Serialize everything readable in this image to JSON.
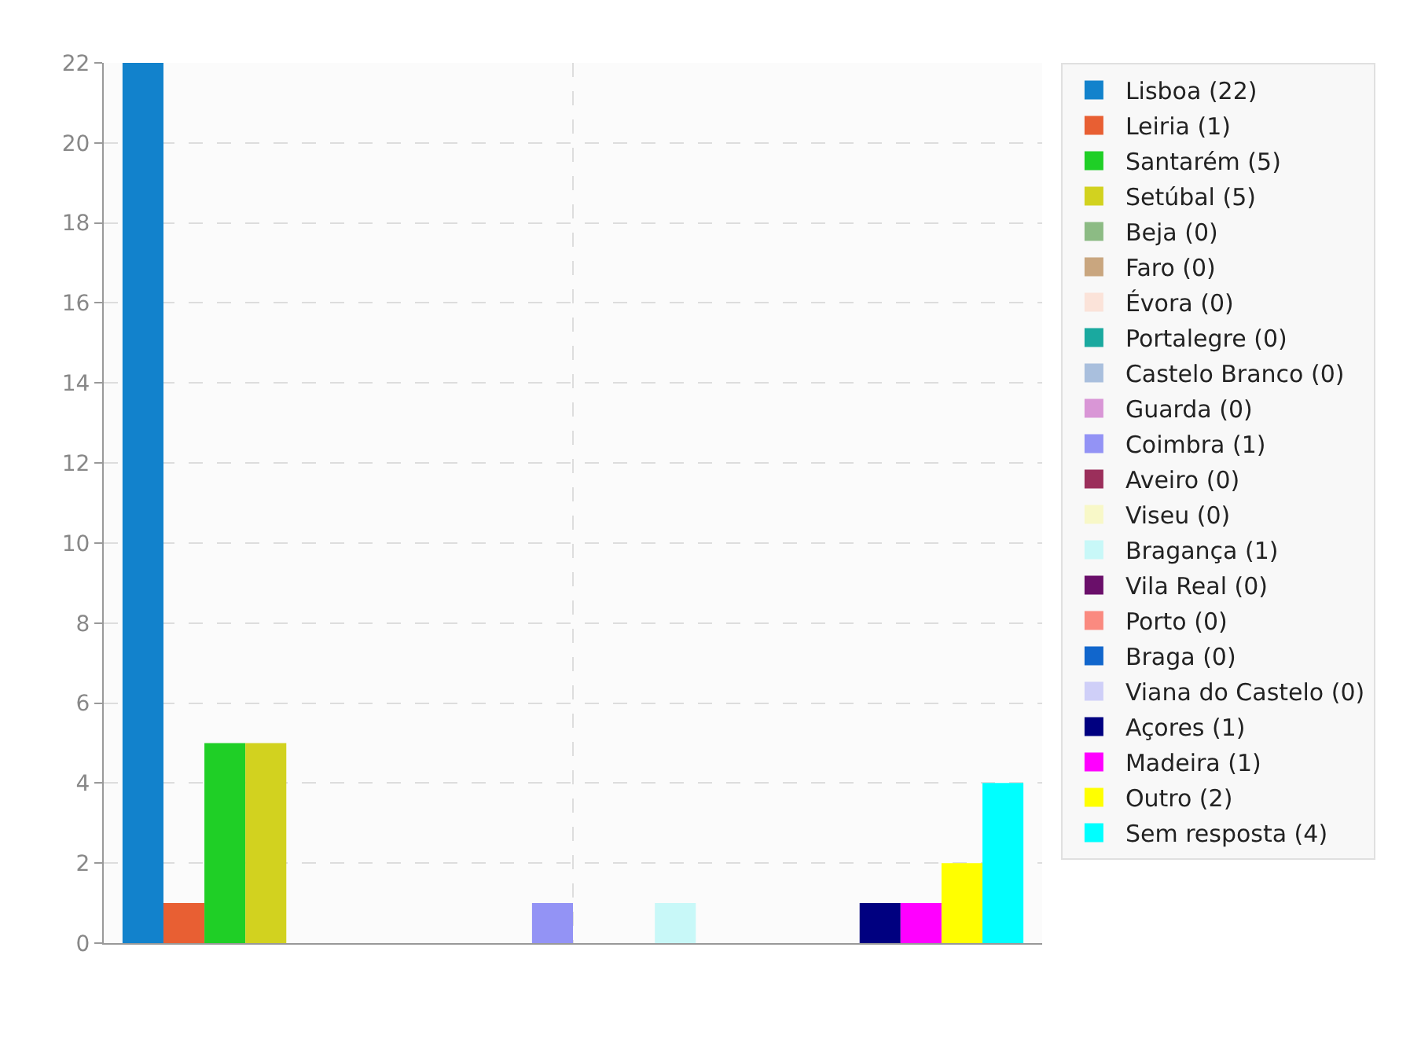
{
  "chart_data": {
    "type": "bar",
    "categories": [
      null
    ],
    "ylim": [
      0,
      22
    ],
    "yticks": [
      0,
      2,
      4,
      6,
      8,
      10,
      12,
      14,
      16,
      18,
      20,
      22
    ],
    "grid": true,
    "legend": "top right",
    "series": [
      {
        "name": "Lisboa (22)",
        "color": "#1282cc",
        "values": [
          22
        ]
      },
      {
        "name": "Leiria (1)",
        "color": "#e85f33",
        "values": [
          1
        ]
      },
      {
        "name": "Santarém (5)",
        "color": "#1fcf26",
        "values": [
          5
        ]
      },
      {
        "name": "Setúbal (5)",
        "color": "#d2d21f",
        "values": [
          5
        ]
      },
      {
        "name": "Beja (0)",
        "color": "#8cbb84",
        "values": [
          0
        ]
      },
      {
        "name": "Faro (0)",
        "color": "#c9a67f",
        "values": [
          0
        ]
      },
      {
        "name": "Évora (0)",
        "color": "#fbe3d9",
        "values": [
          0
        ]
      },
      {
        "name": "Portalegre (0)",
        "color": "#1aa99f",
        "values": [
          0
        ]
      },
      {
        "name": "Castelo Branco (0)",
        "color": "#a9bfdd",
        "values": [
          0
        ]
      },
      {
        "name": "Guarda (0)",
        "color": "#d996d6",
        "values": [
          0
        ]
      },
      {
        "name": "Coimbra (1)",
        "color": "#9393f5",
        "values": [
          1
        ]
      },
      {
        "name": "Aveiro (0)",
        "color": "#9b2f5b",
        "values": [
          0
        ]
      },
      {
        "name": "Viseu (0)",
        "color": "#f8f8c8",
        "values": [
          0
        ]
      },
      {
        "name": "Bragança (1)",
        "color": "#c8f8f8",
        "values": [
          1
        ]
      },
      {
        "name": "Vila Real (0)",
        "color": "#6a0f6a",
        "values": [
          0
        ]
      },
      {
        "name": "Porto (0)",
        "color": "#fa8a80",
        "values": [
          0
        ]
      },
      {
        "name": "Braga (0)",
        "color": "#1166cc",
        "values": [
          0
        ]
      },
      {
        "name": "Viana do Castelo (0)",
        "color": "#cfcff8",
        "values": [
          0
        ]
      },
      {
        "name": "Açores (1)",
        "color": "#000080",
        "values": [
          1
        ]
      },
      {
        "name": "Madeira (1)",
        "color": "#ff00ff",
        "values": [
          1
        ]
      },
      {
        "name": "Outro (2)",
        "color": "#ffff00",
        "values": [
          2
        ]
      },
      {
        "name": "Sem resposta (4)",
        "color": "#00ffff",
        "values": [
          4
        ]
      }
    ]
  }
}
